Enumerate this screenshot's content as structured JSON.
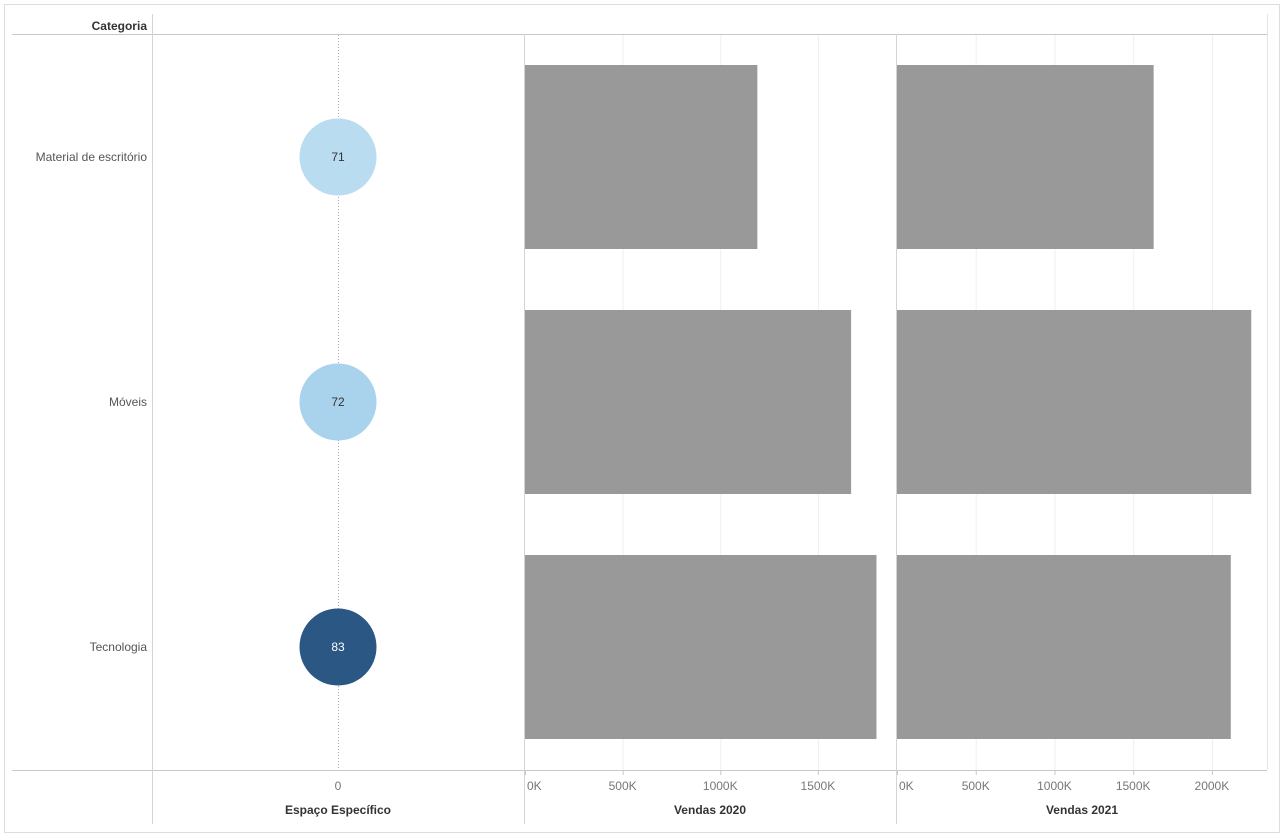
{
  "header": {
    "row_label": "Categoria"
  },
  "chart_data": [
    {
      "type": "scatter",
      "xlabel": "Espaço Específico",
      "categories": [
        "Material de escritório",
        "Móveis",
        "Tecnologia"
      ],
      "x": [
        0,
        0,
        0
      ],
      "values": [
        71,
        72,
        83
      ],
      "colors": [
        "#b9dcf0",
        "#a9d2ec",
        "#2a5783"
      ],
      "label_colors": [
        "#333333",
        "#333333",
        "#ffffff"
      ],
      "x_ticks": [
        "0"
      ]
    },
    {
      "type": "bar",
      "xlabel": "Vendas 2020",
      "categories": [
        "Material de escritório",
        "Móveis",
        "Tecnologia"
      ],
      "values": [
        1190000,
        1670000,
        1800000
      ],
      "xlim": [
        0,
        1900000
      ],
      "x_tick_values": [
        0,
        500000,
        1000000,
        1500000
      ],
      "x_ticks": [
        "0K",
        "500K",
        "1000K",
        "1500K"
      ],
      "color": "#999999"
    },
    {
      "type": "bar",
      "xlabel": "Vendas 2021",
      "categories": [
        "Material de escritório",
        "Móveis",
        "Tecnologia"
      ],
      "values": [
        1630000,
        2250000,
        2120000
      ],
      "xlim": [
        0,
        2350000
      ],
      "x_tick_values": [
        0,
        500000,
        1000000,
        1500000,
        2000000
      ],
      "x_ticks": [
        "0K",
        "500K",
        "1000K",
        "1500K",
        "2000K"
      ],
      "color": "#999999"
    }
  ]
}
